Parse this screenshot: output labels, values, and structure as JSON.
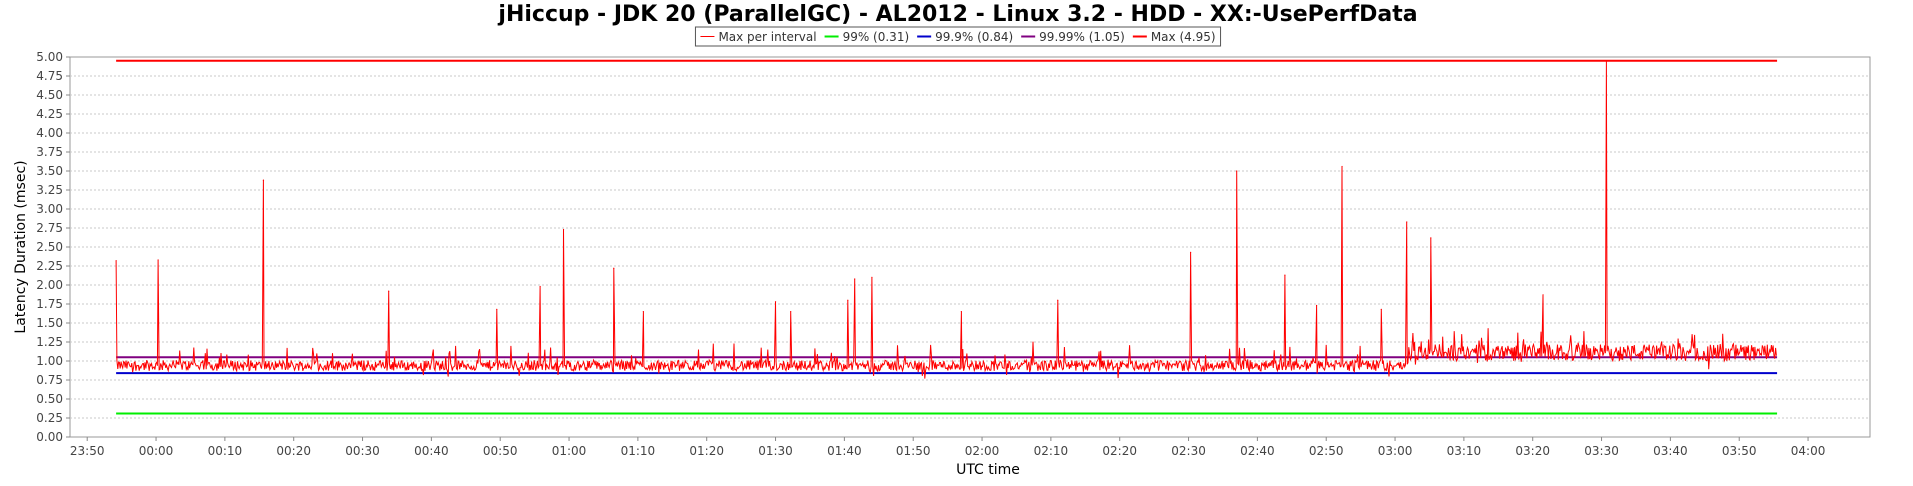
{
  "chart_data": {
    "type": "line",
    "title": "jHiccup - JDK 20 (ParallelGC) - AL2012 - Linux 3.2 - HDD - XX:-UsePerfData",
    "xlabel": "UTC time",
    "ylabel": "Latency Duration (msec)",
    "ylim": [
      0,
      5
    ],
    "y_ticks": [
      "0.00",
      "0.25",
      "0.50",
      "0.75",
      "1.00",
      "1.25",
      "1.50",
      "1.75",
      "2.00",
      "2.25",
      "2.50",
      "2.75",
      "3.00",
      "3.25",
      "3.50",
      "3.75",
      "4.00",
      "4.25",
      "4.50",
      "4.75",
      "5.00"
    ],
    "xlim_minutes": [
      -12.5,
      249
    ],
    "x_ticks": [
      {
        "label": "23:50",
        "min": -10
      },
      {
        "label": "00:00",
        "min": 0
      },
      {
        "label": "00:10",
        "min": 10
      },
      {
        "label": "00:20",
        "min": 20
      },
      {
        "label": "00:30",
        "min": 30
      },
      {
        "label": "00:40",
        "min": 40
      },
      {
        "label": "00:50",
        "min": 50
      },
      {
        "label": "01:00",
        "min": 60
      },
      {
        "label": "01:10",
        "min": 70
      },
      {
        "label": "01:20",
        "min": 80
      },
      {
        "label": "01:30",
        "min": 90
      },
      {
        "label": "01:40",
        "min": 100
      },
      {
        "label": "01:50",
        "min": 110
      },
      {
        "label": "02:00",
        "min": 120
      },
      {
        "label": "02:10",
        "min": 130
      },
      {
        "label": "02:20",
        "min": 140
      },
      {
        "label": "02:30",
        "min": 150
      },
      {
        "label": "02:40",
        "min": 160
      },
      {
        "label": "02:50",
        "min": 170
      },
      {
        "label": "03:00",
        "min": 180
      },
      {
        "label": "03:10",
        "min": 190
      },
      {
        "label": "03:20",
        "min": 200
      },
      {
        "label": "03:30",
        "min": 210
      },
      {
        "label": "03:40",
        "min": 220
      },
      {
        "label": "03:50",
        "min": 230
      },
      {
        "label": "04:00",
        "min": 240
      }
    ],
    "legend_placement": "top-center",
    "grid": true,
    "series": [
      {
        "name": "Max per interval",
        "color": "#ff0000",
        "start_min": -5.8,
        "end_min": 235.5,
        "spikes": [
          {
            "min": -5.8,
            "value": 2.32
          },
          {
            "min": 0.3,
            "value": 2.33
          },
          {
            "min": 15.6,
            "value": 3.38
          },
          {
            "min": 33.8,
            "value": 1.92
          },
          {
            "min": 49.5,
            "value": 1.68
          },
          {
            "min": 55.8,
            "value": 1.98
          },
          {
            "min": 59.2,
            "value": 2.73
          },
          {
            "min": 66.5,
            "value": 2.22
          },
          {
            "min": 70.8,
            "value": 1.65
          },
          {
            "min": 90.0,
            "value": 1.78
          },
          {
            "min": 92.2,
            "value": 1.65
          },
          {
            "min": 100.5,
            "value": 1.8
          },
          {
            "min": 101.5,
            "value": 2.08
          },
          {
            "min": 104.0,
            "value": 2.1
          },
          {
            "min": 117.0,
            "value": 1.65
          },
          {
            "min": 131.0,
            "value": 1.8
          },
          {
            "min": 150.3,
            "value": 2.43
          },
          {
            "min": 157.0,
            "value": 3.5
          },
          {
            "min": 164.0,
            "value": 2.13
          },
          {
            "min": 168.6,
            "value": 1.73
          },
          {
            "min": 172.3,
            "value": 3.56
          },
          {
            "min": 178.0,
            "value": 1.68
          },
          {
            "min": 181.7,
            "value": 2.83
          },
          {
            "min": 185.2,
            "value": 2.62
          },
          {
            "min": 201.5,
            "value": 1.87
          },
          {
            "min": 210.7,
            "value": 4.95
          }
        ]
      },
      {
        "name": "99% (0.31)",
        "color": "#00ee00",
        "value": 0.31,
        "start_min": -5.8,
        "end_min": 235.5
      },
      {
        "name": "99.9% (0.84)",
        "color": "#0000cc",
        "value": 0.84,
        "start_min": -5.8,
        "end_min": 235.5
      },
      {
        "name": "99.99% (1.05)",
        "color": "#800080",
        "value": 1.05,
        "start_min": -5.8,
        "end_min": 235.5
      },
      {
        "name": "Max (4.95)",
        "color": "#ff0000",
        "value": 4.95,
        "start_min": -5.8,
        "end_min": 235.5
      }
    ]
  }
}
